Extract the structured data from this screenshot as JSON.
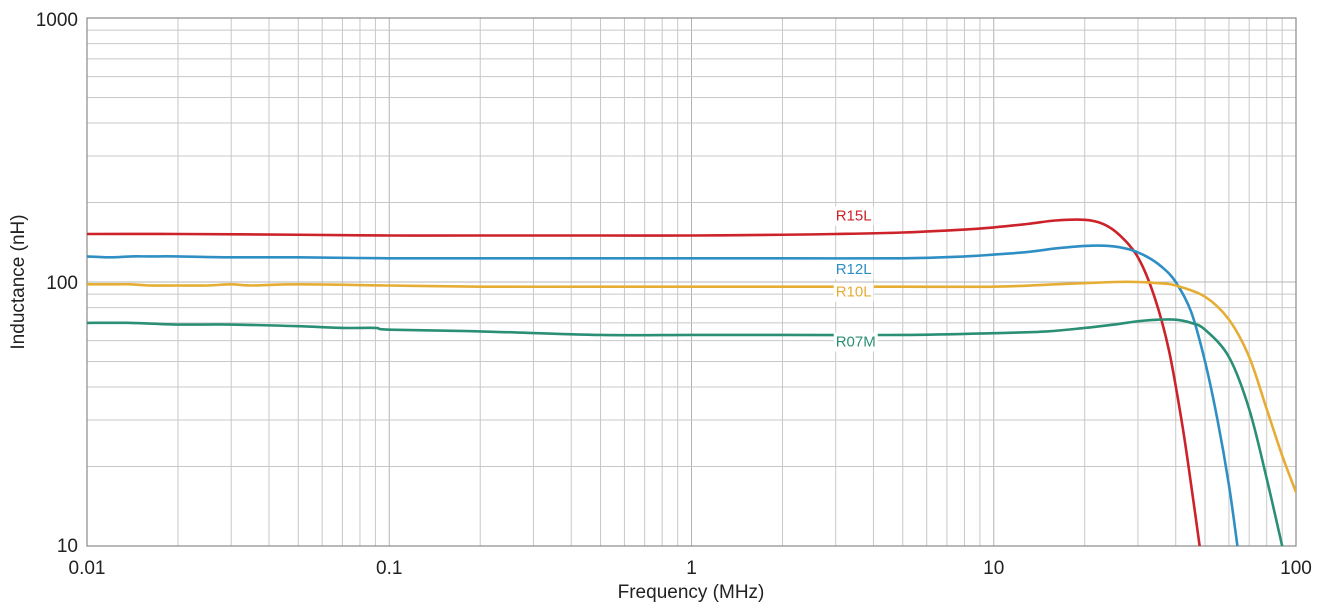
{
  "chart_data": {
    "type": "line",
    "title": "",
    "xlabel": "Frequency (MHz)",
    "ylabel": "Inductance (nH)",
    "x_scale": "log",
    "y_scale": "log",
    "xlim": [
      0.01,
      100
    ],
    "ylim": [
      10,
      1000
    ],
    "x_ticks": [
      0.01,
      0.1,
      1,
      10,
      100
    ],
    "x_tick_labels": [
      "0.01",
      "0.1",
      "1",
      "10",
      "100"
    ],
    "y_ticks": [
      10,
      100,
      1000
    ],
    "y_tick_labels": [
      "10",
      "100",
      "1000"
    ],
    "grid": true,
    "legend": "inline labels",
    "series": [
      {
        "name": "R15L",
        "color": "#cc2229",
        "label_at": [
          3,
          171
        ],
        "x": [
          0.01,
          0.02,
          0.05,
          0.1,
          0.2,
          0.5,
          1,
          2,
          3,
          5,
          8,
          10,
          13,
          16,
          20,
          23,
          26,
          30,
          34,
          38,
          42,
          45,
          48
        ],
        "y": [
          152,
          152,
          151,
          150,
          150,
          150,
          150,
          151,
          152,
          154,
          158,
          161,
          166,
          171,
          172,
          166,
          151,
          124,
          88,
          55,
          29,
          17,
          10
        ]
      },
      {
        "name": "R12L",
        "color": "#2f8fc4",
        "label_at": [
          3,
          107
        ],
        "x": [
          0.01,
          0.012,
          0.014,
          0.016,
          0.02,
          0.03,
          0.05,
          0.1,
          0.2,
          0.5,
          1,
          2,
          5,
          8,
          10,
          13,
          16,
          20,
          24,
          28,
          32,
          36,
          40,
          45,
          50,
          55,
          60,
          64
        ],
        "y": [
          125,
          124,
          125,
          125,
          125,
          124,
          124,
          123,
          123,
          123,
          123,
          123,
          123,
          125,
          127,
          130,
          134,
          137,
          137,
          133,
          125,
          114,
          100,
          77,
          50,
          30,
          17,
          10
        ]
      },
      {
        "name": "R10L",
        "color": "#e6ad35",
        "label_at": [
          3,
          88
        ],
        "x": [
          0.01,
          0.012,
          0.014,
          0.016,
          0.02,
          0.025,
          0.03,
          0.035,
          0.05,
          0.1,
          0.2,
          0.5,
          1,
          2,
          5,
          10,
          16,
          20,
          25,
          30,
          35,
          40,
          50,
          60,
          70,
          80,
          90,
          100
        ],
        "y": [
          98,
          98,
          98,
          97,
          97,
          97,
          98,
          97,
          98,
          97,
          96,
          96,
          96,
          96,
          96,
          96,
          98,
          99,
          100,
          100,
          99,
          97,
          88,
          72,
          52,
          33,
          22,
          16
        ]
      },
      {
        "name": "R07M",
        "color": "#2b8f76",
        "label_at": [
          3,
          57
        ],
        "x": [
          0.01,
          0.014,
          0.02,
          0.03,
          0.05,
          0.07,
          0.09,
          0.1,
          0.2,
          0.5,
          1,
          2,
          5,
          10,
          15,
          20,
          25,
          30,
          35,
          40,
          45,
          50,
          60,
          70,
          80,
          90
        ],
        "y": [
          70,
          70,
          69,
          69,
          68,
          67,
          67,
          66,
          65,
          63,
          63,
          63,
          63,
          64,
          65,
          67,
          69,
          71,
          72,
          72,
          70,
          66,
          52,
          33,
          18,
          10
        ]
      }
    ]
  }
}
